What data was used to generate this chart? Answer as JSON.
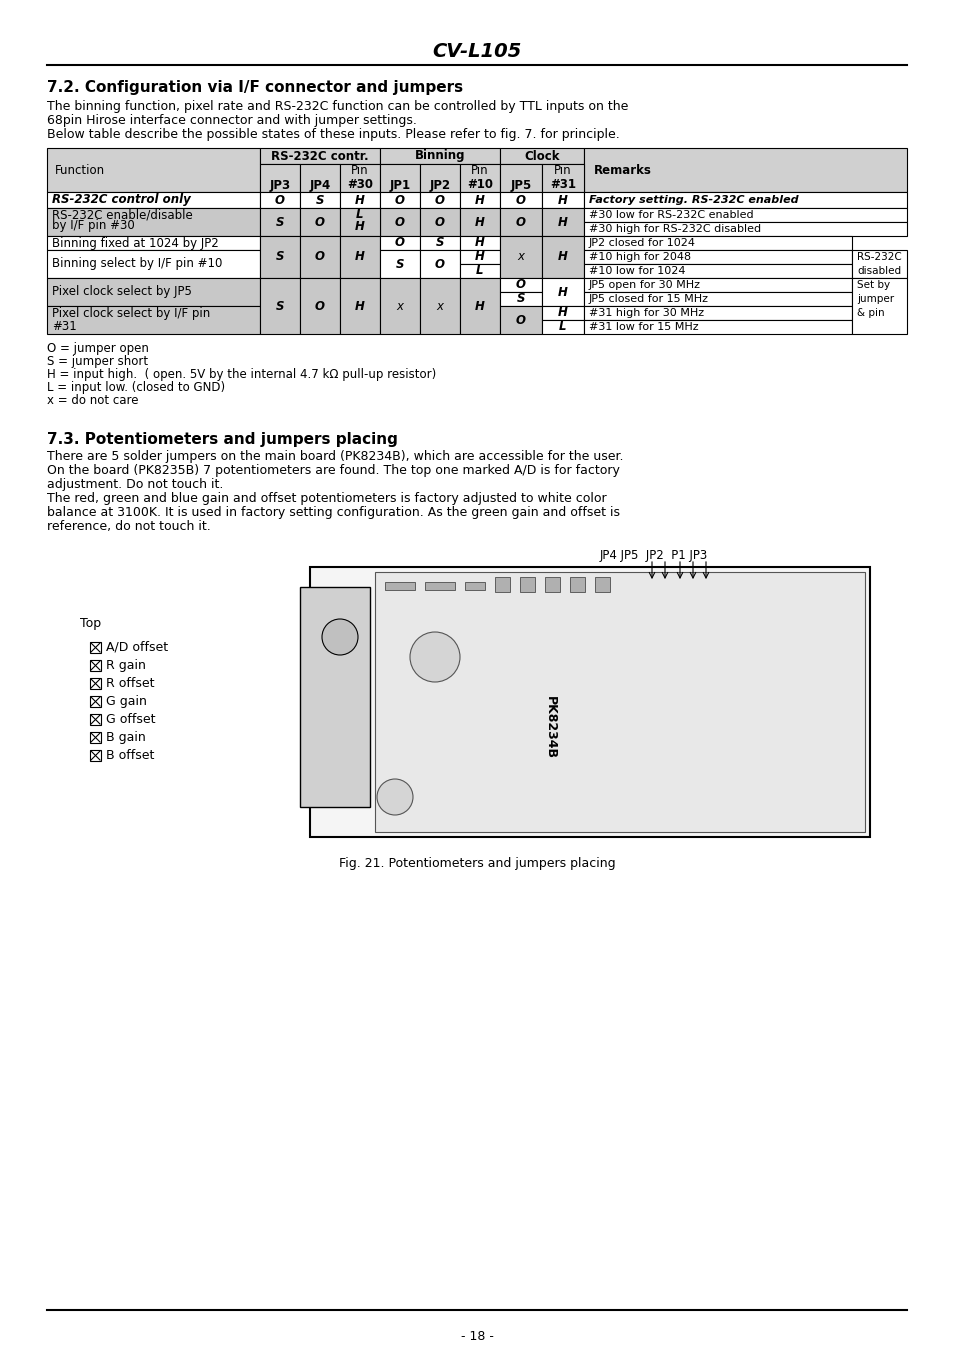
{
  "title": "CV-L105",
  "section1_title": "7.2. Configuration via I/F connector and jumpers",
  "section1_intro": "The binning function, pixel rate and RS-232C function can be controlled by TTL inputs on the\n68pin Hirose interface connector and with jumper settings.\nBelow table describe the possible states of these inputs. Please refer to fig. 7. for principle.",
  "section2_title": "7.3. Potentiometers and jumpers placing",
  "section2_intro": "There are 5 solder jumpers on the main board (PK8234B), which are accessible for the user.\nOn the board (PK8235B) 7 potentiometers are found. The top one marked A/D is for factory\nadjustment. Do not touch it.\nThe red, green and blue gain and offset potentiometers is factory adjusted to white color\nbalance at 3100K. It is used in factory setting configuration. As the green gain and offset is\nreference, do not touch it.",
  "fig_label": "Fig. 21. Potentiometers and jumpers placing",
  "page_number": "- 18 -",
  "legend": [
    "O = jumper open",
    "S = jumper short",
    "H = input high.  ( open. 5V by the internal 4.7 kΩ pull-up resistor)",
    "L = input low. (closed to GND)",
    "x = do not care"
  ],
  "top_label": "Top",
  "potentiometers": [
    "A/D offset",
    "R gain",
    "R offset",
    "G gain",
    "G offset",
    "B gain",
    "B offset"
  ],
  "jp_label": "JP4 JP5  JP2  P1 JP3",
  "bg_color": "#ffffff",
  "table_header_bg": "#d0d0d0",
  "table_cell_bg": "#c8c8c8"
}
